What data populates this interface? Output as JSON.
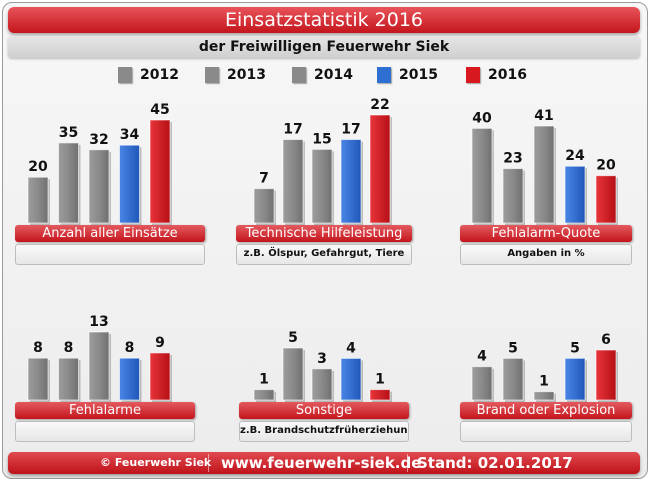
{
  "header": {
    "title": "Einsatzstatistik 2016",
    "subtitle": "der Freiwilligen Feuerwehr Siek"
  },
  "legend": [
    {
      "label": "2012",
      "color": "#8a8a8a"
    },
    {
      "label": "2013",
      "color": "#8a8a8a"
    },
    {
      "label": "2014",
      "color": "#8a8a8a"
    },
    {
      "label": "2015",
      "color": "#2f6fd1"
    },
    {
      "label": "2016",
      "color": "#d7181f"
    }
  ],
  "chart_data": [
    {
      "type": "bar",
      "title": "Anzahl aller Einsätze",
      "note": "",
      "categories": [
        "2012",
        "2013",
        "2014",
        "2015",
        "2016"
      ],
      "values": [
        20,
        35,
        32,
        34,
        45
      ],
      "ylim": [
        0,
        45
      ]
    },
    {
      "type": "bar",
      "title": "Technische Hilfeleistung",
      "note": "z.B. Ölspur, Gefahrgut, Tiere",
      "categories": [
        "2012",
        "2013",
        "2014",
        "2015",
        "2016"
      ],
      "values": [
        7,
        17,
        15,
        17,
        22
      ],
      "ylim": [
        0,
        22
      ]
    },
    {
      "type": "bar",
      "title": "Fehlalarm-Quote",
      "note": "Angaben in %",
      "categories": [
        "2012",
        "2013",
        "2014",
        "2015",
        "2016"
      ],
      "values": [
        40,
        23,
        41,
        24,
        20
      ],
      "ylim": [
        0,
        41
      ]
    },
    {
      "type": "bar",
      "title": "Fehlalarme",
      "note": "",
      "categories": [
        "2012",
        "2013",
        "2014",
        "2015",
        "2016"
      ],
      "values": [
        8,
        8,
        13,
        8,
        9
      ],
      "ylim": [
        0,
        13
      ]
    },
    {
      "type": "bar",
      "title": "Sonstige",
      "note": "z.B. Brandschutzfrüherziehung",
      "categories": [
        "2012",
        "2013",
        "2014",
        "2015",
        "2016"
      ],
      "values": [
        1,
        5,
        3,
        4,
        1
      ],
      "ylim": [
        0,
        5
      ]
    },
    {
      "type": "bar",
      "title": "Brand oder Explosion",
      "note": "",
      "categories": [
        "2012",
        "2013",
        "2014",
        "2015",
        "2016"
      ],
      "values": [
        4,
        5,
        1,
        5,
        6
      ],
      "ylim": [
        0,
        6
      ]
    }
  ],
  "footer": {
    "copyright": "© Feuerwehr Siek",
    "url": "www.feuerwehr-siek.de",
    "date": "Stand: 02.01.2017"
  }
}
